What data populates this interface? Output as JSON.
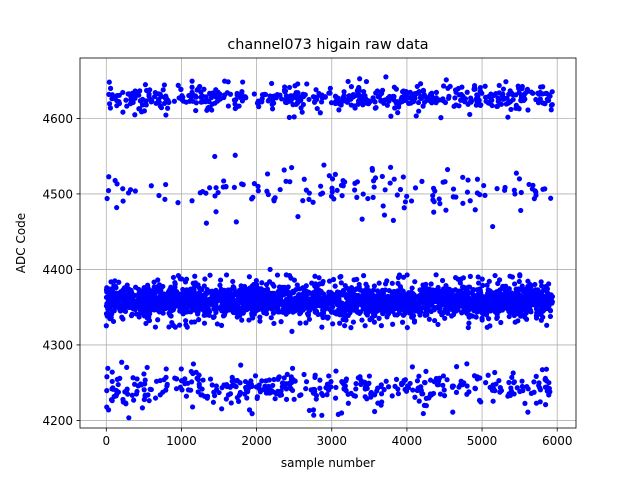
{
  "chart_data": {
    "type": "scatter",
    "title": "channel073 higain raw data",
    "xlabel": "sample number",
    "ylabel": "ADC Code",
    "xlim": [
      -350,
      6250
    ],
    "ylim": [
      4190,
      4680
    ],
    "xticks": [
      0,
      1000,
      2000,
      3000,
      4000,
      5000,
      6000
    ],
    "yticks": [
      4200,
      4300,
      4400,
      4500,
      4600
    ],
    "grid": true,
    "marker_color": "#0000ff",
    "x_range": [
      0,
      5940
    ],
    "bands": [
      {
        "center": 4627,
        "spread": 12,
        "count": 560
      },
      {
        "center": 4358,
        "spread": 16,
        "count": 2800
      },
      {
        "center": 4243,
        "spread": 18,
        "count": 420
      },
      {
        "center": 4505,
        "spread": 22,
        "count": 150
      }
    ],
    "notable_points": [
      {
        "x": 3720,
        "y": 4655
      },
      {
        "x": 40,
        "y": 4648
      },
      {
        "x": 2500,
        "y": 4602
      },
      {
        "x": 2550,
        "y": 4470
      },
      {
        "x": 3820,
        "y": 4465
      },
      {
        "x": 1730,
        "y": 4463
      },
      {
        "x": 2180,
        "y": 4400
      },
      {
        "x": 2470,
        "y": 4318
      },
      {
        "x": 2760,
        "y": 4207
      },
      {
        "x": 1940,
        "y": 4209
      },
      {
        "x": 4610,
        "y": 4211
      },
      {
        "x": 5610,
        "y": 4211
      },
      {
        "x": 30,
        "y": 4214
      }
    ]
  }
}
